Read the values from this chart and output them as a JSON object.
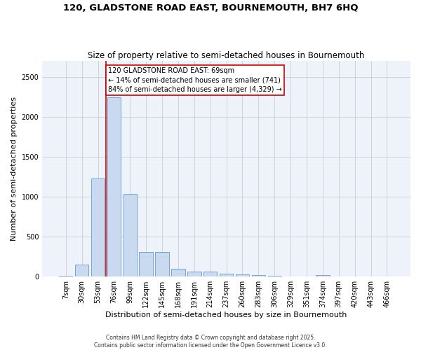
{
  "title1": "120, GLADSTONE ROAD EAST, BOURNEMOUTH, BH7 6HQ",
  "title2": "Size of property relative to semi-detached houses in Bournemouth",
  "xlabel": "Distribution of semi-detached houses by size in Bournemouth",
  "ylabel": "Number of semi-detached properties",
  "bin_labels": [
    "7sqm",
    "30sqm",
    "53sqm",
    "76sqm",
    "99sqm",
    "122sqm",
    "145sqm",
    "168sqm",
    "191sqm",
    "214sqm",
    "237sqm",
    "260sqm",
    "283sqm",
    "306sqm",
    "329sqm",
    "351sqm",
    "374sqm",
    "397sqm",
    "420sqm",
    "443sqm",
    "466sqm"
  ],
  "bar_values": [
    10,
    150,
    1230,
    2250,
    1040,
    310,
    310,
    100,
    60,
    60,
    40,
    30,
    15,
    10,
    0,
    0,
    20,
    0,
    0,
    0,
    0
  ],
  "bar_color": "#c9d9ef",
  "bar_edge_color": "#6699cc",
  "vline_color": "#cc0000",
  "annotation_text": "120 GLADSTONE ROAD EAST: 69sqm\n← 14% of semi-detached houses are smaller (741)\n84% of semi-detached houses are larger (4,329) →",
  "annotation_box_color": "#cc0000",
  "ylim_max": 2700,
  "yticks": [
    0,
    500,
    1000,
    1500,
    2000,
    2500
  ],
  "grid_color": "#cccccc",
  "bg_color": "#eef2fb",
  "footnote": "Contains HM Land Registry data © Crown copyright and database right 2025.\nContains public sector information licensed under the Open Government Licence v3.0.",
  "title1_fontsize": 9.5,
  "title2_fontsize": 8.5,
  "xlabel_fontsize": 8,
  "ylabel_fontsize": 8,
  "tick_fontsize": 7,
  "annotation_fontsize": 7,
  "footnote_fontsize": 5.5
}
